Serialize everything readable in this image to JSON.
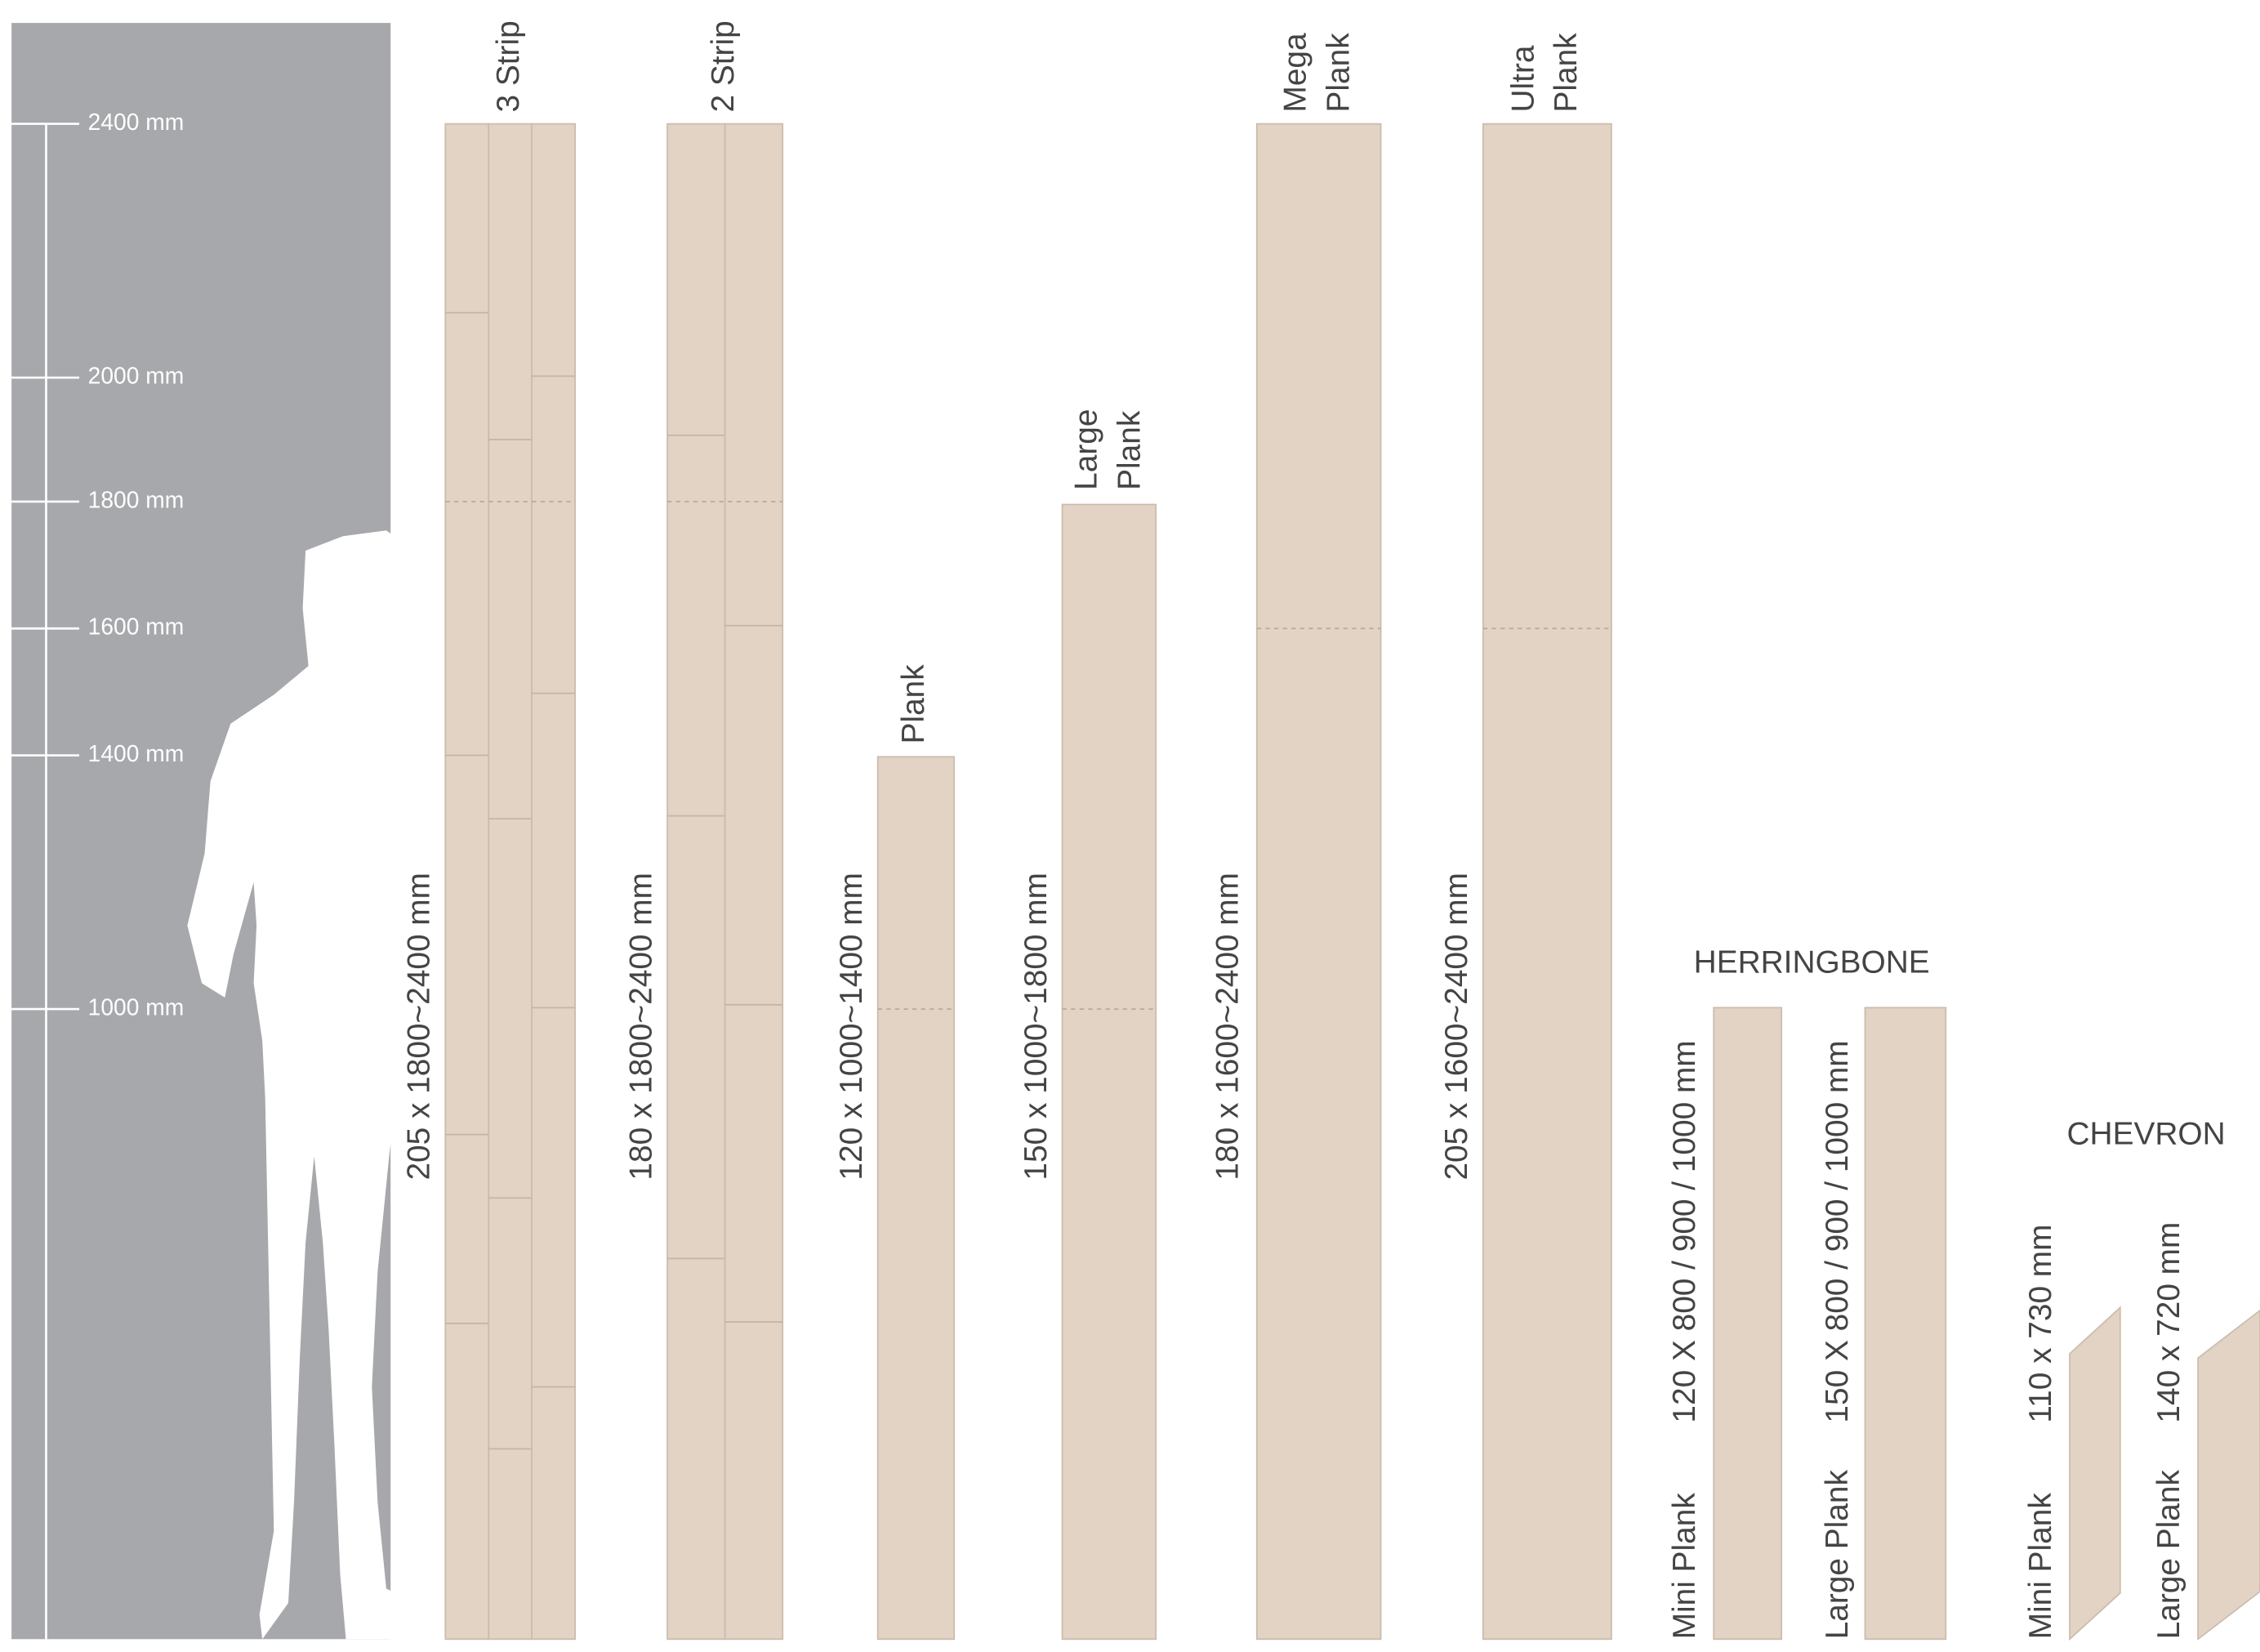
{
  "scale": {
    "marks": [
      "2400 mm",
      "2000 mm",
      "1800 mm",
      "1600 mm",
      "1400 mm",
      "1000 mm"
    ]
  },
  "products": [
    {
      "name_lines": [
        "3 Strip"
      ],
      "size": "205 x 1800~2400 mm"
    },
    {
      "name_lines": [
        "2 Strip"
      ],
      "size": "180 x 1800~2400 mm"
    },
    {
      "name_lines": [
        "Plank"
      ],
      "size": "120 x 1000~1400 mm"
    },
    {
      "name_lines": [
        "Large",
        "Plank"
      ],
      "size": "150 x 1000~1800 mm"
    },
    {
      "name_lines": [
        "Mega",
        "Plank"
      ],
      "size": "180 x 1600~2400 mm"
    },
    {
      "name_lines": [
        "Ultra",
        "Plank"
      ],
      "size": "205 x 1600~2400 mm"
    }
  ],
  "herringbone": {
    "title": "HERRINGBONE",
    "items": [
      {
        "name": "Mini Plank",
        "size": "120 X 800 / 900 / 1000 mm"
      },
      {
        "name": "Large Plank",
        "size": "150 X 800 / 900 / 1000 mm"
      }
    ]
  },
  "chevron": {
    "title": "CHEVRON",
    "items": [
      {
        "name": "Mini Plank",
        "size": "110 x 730 mm"
      },
      {
        "name": "Large Plank",
        "size": "140 x 720 mm"
      }
    ]
  }
}
